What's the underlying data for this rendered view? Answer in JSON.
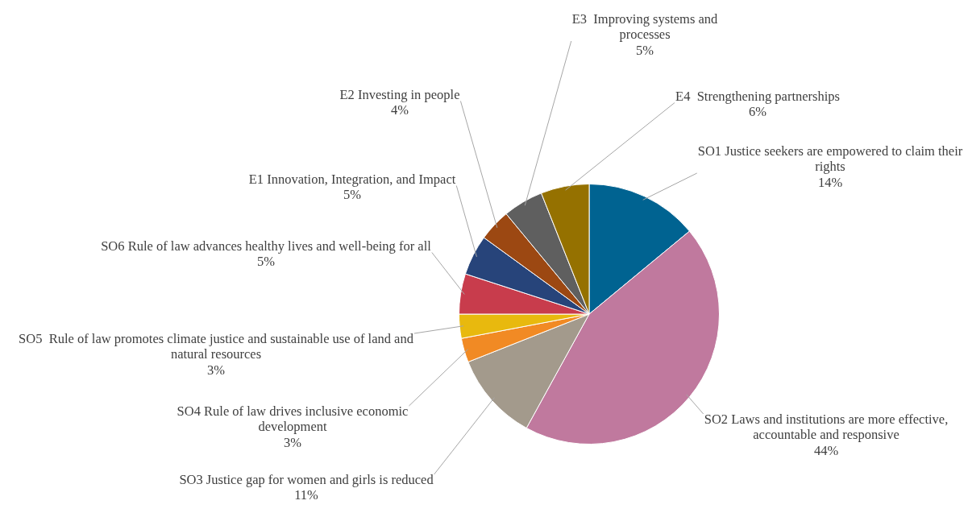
{
  "chart_data": {
    "type": "pie",
    "categories": [
      "SO1 Justice seekers are empowered to claim their rights",
      "SO2 Laws and institutions are more effective, accountable and responsive",
      "SO3 Justice gap for women and girls is reduced",
      "SO4 Rule of law drives inclusive economic development",
      "SO5  Rule of law promotes climate justice and sustainable use of land and natural resources",
      "SO6 Rule of law advances healthy lives and well-being for all",
      "E1 Innovation, Integration, and Impact",
      "E2 Investing in people",
      "E3  Improving systems and processes",
      "E4  Strengthening partnerships"
    ],
    "values": [
      14,
      44,
      11,
      3,
      3,
      5,
      5,
      4,
      5,
      6
    ],
    "value_labels": [
      "14%",
      "44%",
      "11%",
      "3%",
      "3%",
      "5%",
      "5%",
      "4%",
      "5%",
      "6%"
    ],
    "colors": [
      "#006391",
      "#c0799e",
      "#a39a8c",
      "#f18a24",
      "#e8b90e",
      "#c83c4c",
      "#27447a",
      "#9c4812",
      "#5f5f5f",
      "#957100"
    ],
    "legend": false
  }
}
